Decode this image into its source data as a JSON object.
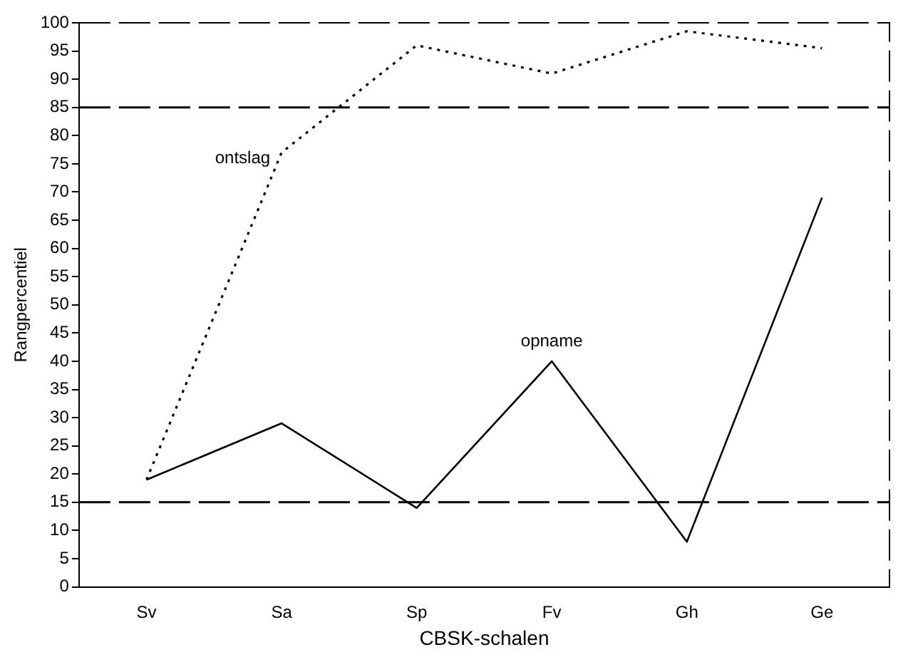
{
  "chart_data": {
    "type": "line",
    "xlabel": "CBSK-schalen",
    "ylabel": "Rangpercentiel",
    "categories": [
      "Sv",
      "Sa",
      "Sp",
      "Fv",
      "Gh",
      "Ge"
    ],
    "series": [
      {
        "name": "ontslag",
        "color": "#000000",
        "line_style": "dotted",
        "values": [
          19,
          77,
          96,
          91,
          98.5,
          95.5
        ]
      },
      {
        "name": "opname",
        "color": "#000000",
        "line_style": "solid",
        "values": [
          19,
          29,
          14,
          40,
          8,
          69
        ]
      }
    ],
    "ylim": [
      0,
      100
    ],
    "yticks": [
      0,
      5,
      10,
      15,
      20,
      25,
      30,
      35,
      40,
      45,
      50,
      55,
      60,
      65,
      70,
      75,
      80,
      85,
      90,
      95,
      100
    ],
    "ref_lines": [
      {
        "axis": "y",
        "value": 85,
        "color": "#000000",
        "line_style": "dashed"
      },
      {
        "axis": "y",
        "value": 15,
        "color": "#000000",
        "line_style": "dashed"
      }
    ],
    "grid": false,
    "legend": false,
    "marker": "none"
  }
}
